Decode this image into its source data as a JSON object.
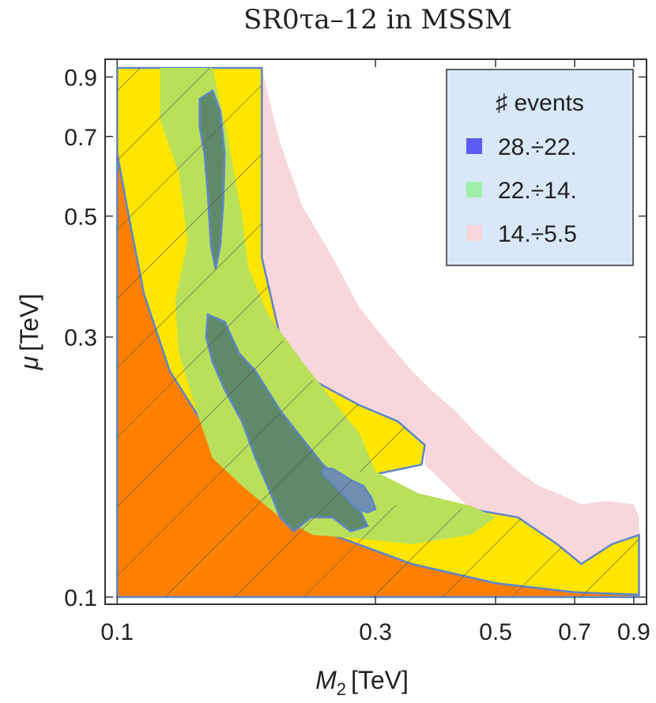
{
  "chart_data": {
    "type": "contour",
    "title": "SR0τa–12 in MSSM",
    "xlabel_symbol": "M",
    "xlabel_subscript": "2",
    "xlabel_unit": "[TeV]",
    "ylabel_symbol": "μ",
    "ylabel_unit": "[TeV]",
    "x_scale": "log",
    "y_scale": "log",
    "xlim": [
      0.095,
      0.95
    ],
    "ylim": [
      0.097,
      0.97
    ],
    "x_ticks": [
      0.1,
      0.3,
      0.5,
      0.7,
      0.9
    ],
    "x_tick_labels": [
      "0.1",
      "0.3",
      "0.5",
      "0.7",
      "0.9"
    ],
    "y_ticks": [
      0.1,
      0.3,
      0.5,
      0.7,
      0.9
    ],
    "y_tick_labels": [
      "0.1",
      "0.3",
      "0.5",
      "0.7",
      "0.9"
    ],
    "legend": {
      "title": "♯ events",
      "placement": "top-right",
      "entries": [
        {
          "label": "28.÷22.",
          "color": "#5b5bf5"
        },
        {
          "label": "22.÷14.",
          "color": "#9ef0a8"
        },
        {
          "label": "14.÷5.5",
          "color": "#f7d6dc"
        }
      ]
    },
    "colors": {
      "excluded_orange": "#ff8000",
      "allowed_yellow": "#ffe600",
      "level_lightgreen": "#b9e05a",
      "level_green": "#8fcf4a",
      "level_dark": "#5f8a6a",
      "level_blue": "#6f8fb0",
      "pink_region": "#f7d6dc",
      "boundary": "#5f86c8",
      "hatch": "#555555"
    },
    "regions": [
      {
        "name": "orange-excluded",
        "points": [
          [
            0.1,
            0.1
          ],
          [
            0.1,
            0.65
          ],
          [
            0.105,
            0.5
          ],
          [
            0.112,
            0.36
          ],
          [
            0.125,
            0.26
          ],
          [
            0.15,
            0.195
          ],
          [
            0.2,
            0.15
          ],
          [
            0.25,
            0.13
          ],
          [
            0.35,
            0.115
          ],
          [
            0.5,
            0.106
          ],
          [
            0.7,
            0.102
          ],
          [
            0.9,
            0.101
          ],
          [
            0.92,
            0.1
          ]
        ]
      },
      {
        "name": "allowed-yellow",
        "points": [
          [
            0.1,
            0.935
          ],
          [
            0.185,
            0.935
          ],
          [
            0.185,
            0.42
          ],
          [
            0.2,
            0.3
          ],
          [
            0.23,
            0.25
          ],
          [
            0.28,
            0.225
          ],
          [
            0.33,
            0.21
          ],
          [
            0.37,
            0.19
          ],
          [
            0.365,
            0.175
          ],
          [
            0.3,
            0.168
          ],
          [
            0.26,
            0.172
          ],
          [
            0.3,
            0.148
          ],
          [
            0.45,
            0.145
          ],
          [
            0.55,
            0.14
          ],
          [
            0.65,
            0.125
          ],
          [
            0.72,
            0.115
          ],
          [
            0.82,
            0.125
          ],
          [
            0.92,
            0.13
          ],
          [
            0.92,
            0.101
          ],
          [
            0.7,
            0.102
          ],
          [
            0.5,
            0.106
          ],
          [
            0.35,
            0.115
          ],
          [
            0.25,
            0.13
          ],
          [
            0.2,
            0.15
          ],
          [
            0.15,
            0.195
          ],
          [
            0.125,
            0.26
          ],
          [
            0.112,
            0.36
          ],
          [
            0.105,
            0.5
          ],
          [
            0.1,
            0.65
          ]
        ]
      },
      {
        "name": "lightgreen-level",
        "points": [
          [
            0.12,
            0.935
          ],
          [
            0.15,
            0.935
          ],
          [
            0.16,
            0.7
          ],
          [
            0.17,
            0.5
          ],
          [
            0.175,
            0.4
          ],
          [
            0.19,
            0.33
          ],
          [
            0.22,
            0.27
          ],
          [
            0.25,
            0.23
          ],
          [
            0.28,
            0.2
          ],
          [
            0.3,
            0.17
          ],
          [
            0.36,
            0.155
          ],
          [
            0.45,
            0.147
          ],
          [
            0.5,
            0.14
          ],
          [
            0.45,
            0.13
          ],
          [
            0.35,
            0.125
          ],
          [
            0.28,
            0.128
          ],
          [
            0.23,
            0.13
          ],
          [
            0.2,
            0.14
          ],
          [
            0.17,
            0.16
          ],
          [
            0.15,
            0.18
          ],
          [
            0.14,
            0.22
          ],
          [
            0.13,
            0.28
          ],
          [
            0.128,
            0.35
          ],
          [
            0.135,
            0.45
          ],
          [
            0.13,
            0.6
          ],
          [
            0.12,
            0.75
          ]
        ]
      },
      {
        "name": "dark-level-upper",
        "points": [
          [
            0.142,
            0.82
          ],
          [
            0.15,
            0.85
          ],
          [
            0.155,
            0.78
          ],
          [
            0.158,
            0.65
          ],
          [
            0.157,
            0.53
          ],
          [
            0.155,
            0.44
          ],
          [
            0.152,
            0.4
          ],
          [
            0.149,
            0.44
          ],
          [
            0.147,
            0.55
          ],
          [
            0.145,
            0.65
          ],
          [
            0.142,
            0.73
          ]
        ]
      },
      {
        "name": "dark-level-lower",
        "points": [
          [
            0.147,
            0.33
          ],
          [
            0.158,
            0.32
          ],
          [
            0.168,
            0.28
          ],
          [
            0.18,
            0.26
          ],
          [
            0.2,
            0.22
          ],
          [
            0.22,
            0.195
          ],
          [
            0.24,
            0.175
          ],
          [
            0.262,
            0.163
          ],
          [
            0.28,
            0.145
          ],
          [
            0.29,
            0.135
          ],
          [
            0.27,
            0.132
          ],
          [
            0.25,
            0.14
          ],
          [
            0.228,
            0.14
          ],
          [
            0.212,
            0.132
          ],
          [
            0.2,
            0.14
          ],
          [
            0.192,
            0.155
          ],
          [
            0.18,
            0.18
          ],
          [
            0.17,
            0.21
          ],
          [
            0.158,
            0.24
          ],
          [
            0.15,
            0.27
          ],
          [
            0.146,
            0.3
          ]
        ]
      },
      {
        "name": "blue-level",
        "points": [
          [
            0.24,
            0.172
          ],
          [
            0.25,
            0.172
          ],
          [
            0.26,
            0.168
          ],
          [
            0.27,
            0.164
          ],
          [
            0.285,
            0.16
          ],
          [
            0.295,
            0.152
          ],
          [
            0.3,
            0.145
          ],
          [
            0.29,
            0.143
          ],
          [
            0.275,
            0.146
          ],
          [
            0.26,
            0.155
          ],
          [
            0.248,
            0.163
          ],
          [
            0.24,
            0.168
          ]
        ]
      },
      {
        "name": "pink-region",
        "points": [
          [
            0.185,
            0.935
          ],
          [
            0.192,
            0.8
          ],
          [
            0.2,
            0.68
          ],
          [
            0.22,
            0.52
          ],
          [
            0.25,
            0.42
          ],
          [
            0.28,
            0.34
          ],
          [
            0.31,
            0.3
          ],
          [
            0.35,
            0.26
          ],
          [
            0.38,
            0.24
          ],
          [
            0.42,
            0.22
          ],
          [
            0.46,
            0.2
          ],
          [
            0.5,
            0.185
          ],
          [
            0.55,
            0.17
          ],
          [
            0.6,
            0.16
          ],
          [
            0.65,
            0.155
          ],
          [
            0.72,
            0.148
          ],
          [
            0.8,
            0.15
          ],
          [
            0.9,
            0.148
          ],
          [
            0.92,
            0.14
          ],
          [
            0.92,
            0.13
          ],
          [
            0.82,
            0.125
          ],
          [
            0.72,
            0.115
          ],
          [
            0.65,
            0.125
          ],
          [
            0.55,
            0.14
          ],
          [
            0.45,
            0.145
          ],
          [
            0.37,
            0.175
          ],
          [
            0.37,
            0.19
          ],
          [
            0.33,
            0.21
          ],
          [
            0.28,
            0.225
          ],
          [
            0.23,
            0.25
          ],
          [
            0.2,
            0.3
          ],
          [
            0.185,
            0.42
          ]
        ]
      }
    ]
  }
}
